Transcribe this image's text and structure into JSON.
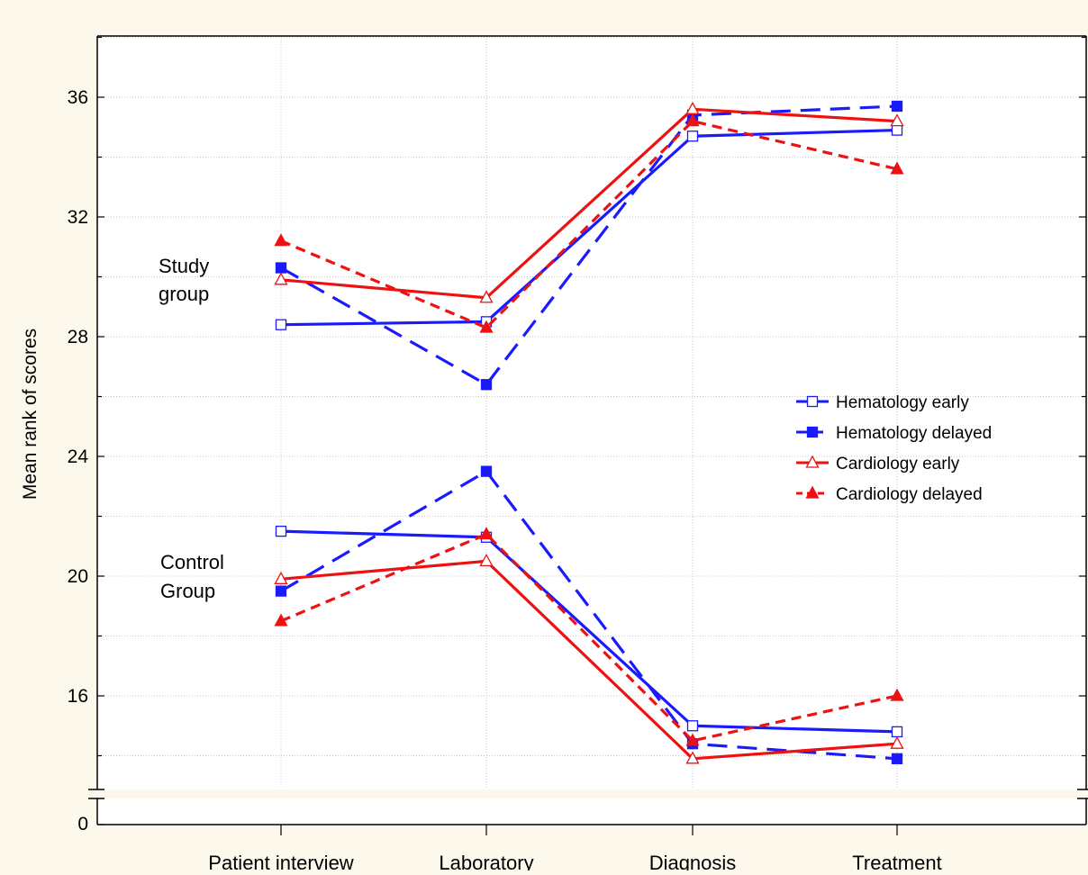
{
  "chart_data": {
    "type": "line",
    "ylabel": "Mean rank of scores",
    "xlabel": "",
    "categories": [
      "Patient interview",
      "Laboratory",
      "Diagnosis",
      "Treatment"
    ],
    "ylim": [
      12,
      38
    ],
    "yticks": [
      16,
      20,
      24,
      28,
      32,
      36
    ],
    "y_break_tick": 0,
    "grid": true,
    "legend_position": "right",
    "group_labels": [
      {
        "line1": "Study",
        "line2": "group"
      },
      {
        "line1": "Control",
        "line2": "Group"
      }
    ],
    "series": [
      {
        "name": "Hematology early",
        "color": "#1a1aff",
        "dash": "solid",
        "marker": "square-open",
        "group": "study",
        "values": [
          28.4,
          28.5,
          34.7,
          34.9
        ]
      },
      {
        "name": "Hematology delayed",
        "color": "#1a1aff",
        "dash": "longdash",
        "marker": "square-filled",
        "group": "study",
        "values": [
          30.3,
          26.4,
          35.4,
          35.7
        ]
      },
      {
        "name": "Cardiology early",
        "color": "#ee1111",
        "dash": "solid",
        "marker": "triangle-open",
        "group": "study",
        "values": [
          29.9,
          29.3,
          35.6,
          35.2
        ]
      },
      {
        "name": "Cardiology delayed",
        "color": "#ee1111",
        "dash": "shortdash",
        "marker": "triangle-filled",
        "group": "study",
        "values": [
          31.2,
          28.3,
          35.2,
          33.6
        ]
      },
      {
        "name": "Hematology early",
        "color": "#1a1aff",
        "dash": "solid",
        "marker": "square-open",
        "group": "control",
        "values": [
          21.5,
          21.3,
          15.0,
          14.8
        ]
      },
      {
        "name": "Hematology delayed",
        "color": "#1a1aff",
        "dash": "longdash",
        "marker": "square-filled",
        "group": "control",
        "values": [
          19.5,
          23.5,
          14.4,
          13.9
        ]
      },
      {
        "name": "Cardiology early",
        "color": "#ee1111",
        "dash": "solid",
        "marker": "triangle-open",
        "group": "control",
        "values": [
          19.9,
          20.5,
          13.9,
          14.4
        ]
      },
      {
        "name": "Cardiology delayed",
        "color": "#ee1111",
        "dash": "shortdash",
        "marker": "triangle-filled",
        "group": "control",
        "values": [
          18.5,
          21.4,
          14.5,
          16.0
        ]
      }
    ]
  }
}
